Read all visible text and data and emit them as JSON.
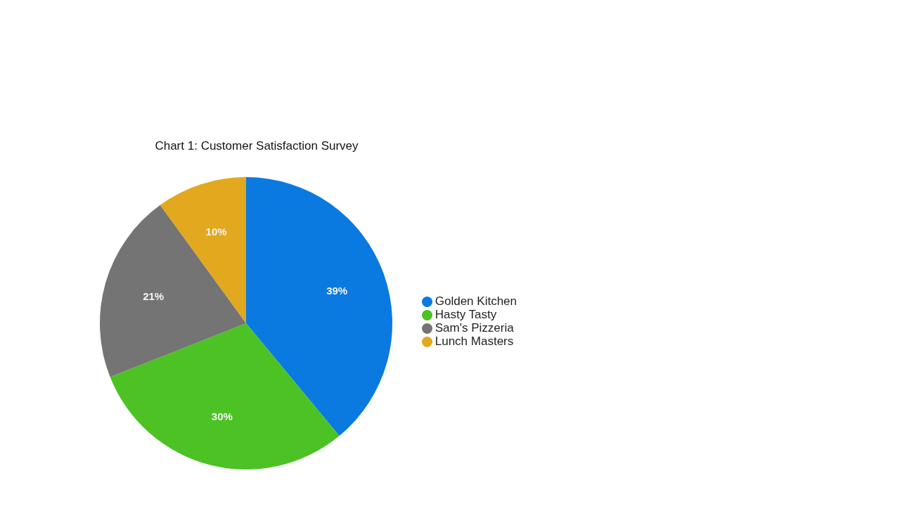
{
  "chart_data": {
    "type": "pie",
    "title": "Chart 1: Customer Satisfaction Survey",
    "categories": [
      "Golden Kitchen",
      "Hasty Tasty",
      "Sam's Pizzeria",
      "Lunch Masters"
    ],
    "values": [
      39,
      30,
      21,
      10
    ],
    "colors": [
      "#0a7ae0",
      "#4cc224",
      "#747474",
      "#e2a81e"
    ],
    "value_labels": [
      "39%",
      "30%",
      "21%",
      "10%"
    ],
    "legend": "right"
  }
}
